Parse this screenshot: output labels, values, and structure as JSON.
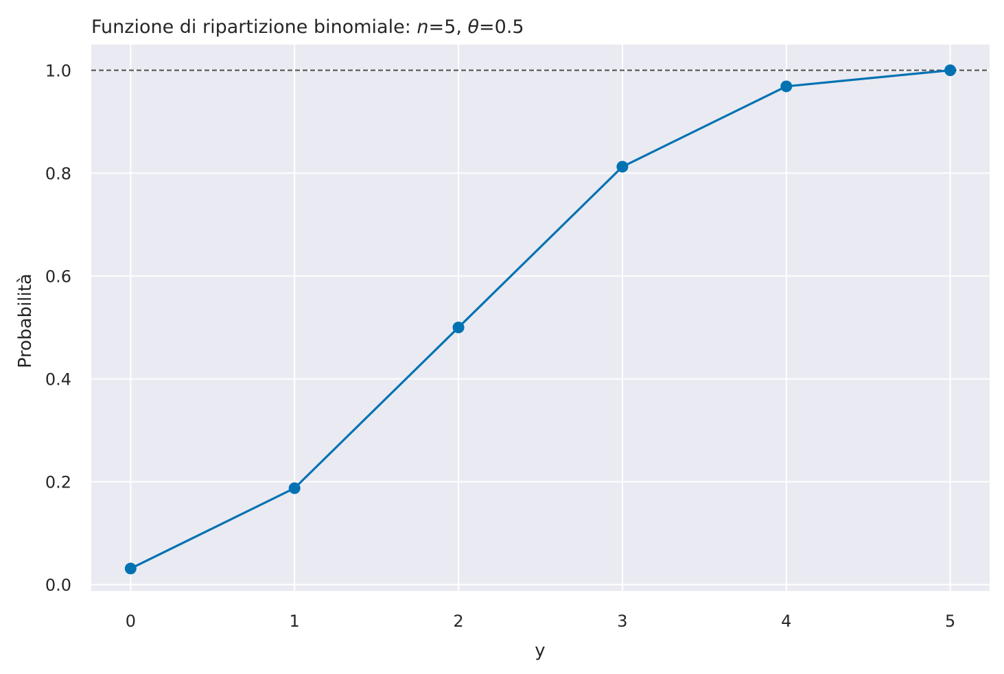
{
  "chart_data": {
    "type": "line",
    "title": "Funzione di ripartizione binomiale: n=5, θ=0.5",
    "title_parts": {
      "prefix": "Funzione di ripartizione binomiale: ",
      "n_symbol": "n",
      "n_value": "=5, ",
      "theta_symbol": "θ",
      "theta_value": "=0.5"
    },
    "xlabel": "y",
    "ylabel": "Probabilità",
    "x": [
      0,
      1,
      2,
      3,
      4,
      5
    ],
    "series": [
      {
        "values": [
          0.03125,
          0.1875,
          0.5,
          0.8125,
          0.96875,
          1.0
        ],
        "color": "#0072b2",
        "marker": "circle"
      }
    ],
    "reference_line": {
      "y": 1.0,
      "style": "dashed",
      "color": "#4d4d4d"
    },
    "xticks": [
      "0",
      "1",
      "2",
      "3",
      "4",
      "5"
    ],
    "yticks": [
      "0.0",
      "0.2",
      "0.4",
      "0.6",
      "0.8",
      "1.0"
    ],
    "xlim": [
      -0.24,
      5.24
    ],
    "ylim": [
      -0.0125,
      1.05
    ],
    "grid": true,
    "background": "#eaeaf2",
    "grid_color": "#ffffff"
  }
}
